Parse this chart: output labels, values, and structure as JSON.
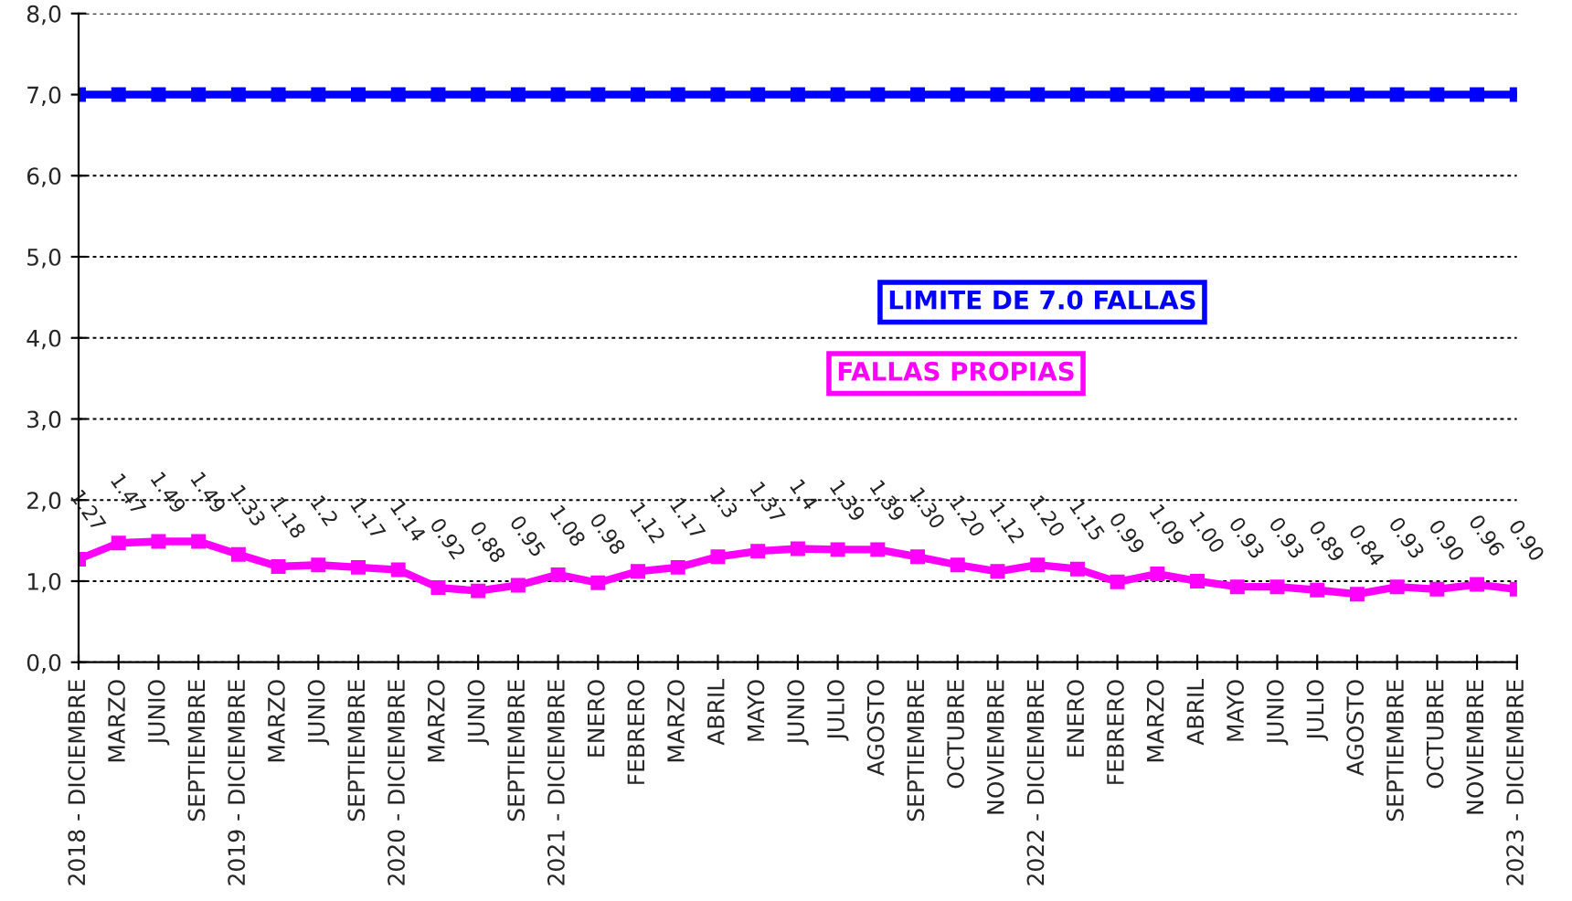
{
  "chart_data": {
    "type": "line",
    "categories": [
      "2018 - DICIEMBRE",
      "MARZO",
      "JUNIO",
      "SEPTIEMBRE",
      "2019 - DICIEMBRE",
      "MARZO",
      "JUNIO",
      "SEPTIEMBRE",
      "2020 - DICIEMBRE",
      "MARZO",
      "JUNIO",
      "SEPTIEMBRE",
      "2021 - DICIEMBRE",
      "ENERO",
      "FEBRERO",
      "MARZO",
      "ABRIL",
      "MAYO",
      "JUNIO",
      "JULIO",
      "AGOSTO",
      "SEPTIEMBRE",
      "OCTUBRE",
      "NOVIEMBRE",
      "2022 - DICIEMBRE",
      "ENERO",
      "FEBRERO",
      "MARZO",
      "ABRIL",
      "MAYO",
      "JUNIO",
      "JULIO",
      "AGOSTO",
      "SEPTIEMBRE",
      "OCTUBRE",
      "NOVIEMBRE",
      "2023 - DICIEMBRE"
    ],
    "series": [
      {
        "name": "LIMITE DE 7.0 FALLAS",
        "color": "#0000ff",
        "values": [
          7.0,
          7.0,
          7.0,
          7.0,
          7.0,
          7.0,
          7.0,
          7.0,
          7.0,
          7.0,
          7.0,
          7.0,
          7.0,
          7.0,
          7.0,
          7.0,
          7.0,
          7.0,
          7.0,
          7.0,
          7.0,
          7.0,
          7.0,
          7.0,
          7.0,
          7.0,
          7.0,
          7.0,
          7.0,
          7.0,
          7.0,
          7.0,
          7.0,
          7.0,
          7.0,
          7.0,
          7.0
        ]
      },
      {
        "name": "FALLAS PROPIAS",
        "color": "#ff00ff",
        "values": [
          1.27,
          1.47,
          1.49,
          1.49,
          1.33,
          1.18,
          1.2,
          1.17,
          1.14,
          0.92,
          0.88,
          0.95,
          1.08,
          0.98,
          1.12,
          1.17,
          1.3,
          1.37,
          1.4,
          1.39,
          1.39,
          1.3,
          1.2,
          1.12,
          1.2,
          1.15,
          0.99,
          1.09,
          1.0,
          0.93,
          0.93,
          0.89,
          0.84,
          0.93,
          0.9,
          0.96,
          0.9
        ],
        "value_labels": [
          "1.27",
          "1.47",
          "1.49",
          "1.49",
          "1.33",
          "1.18",
          "1.2",
          "1.17",
          "1.14",
          "0.92",
          "0.88",
          "0.95",
          "1.08",
          "0.98",
          "1.12",
          "1.17",
          "1.3",
          "1.37",
          "1.4",
          "1.39",
          "1.39",
          "1.30",
          "1.20",
          "1.12",
          "1.20",
          "1.15",
          "0.99",
          "1.09",
          "1.00",
          "0.93",
          "0.93",
          "0.89",
          "0.84",
          "0.93",
          "0.90",
          "0.96",
          "0.90"
        ]
      }
    ],
    "ylim": [
      0,
      8
    ],
    "yticks": [
      {
        "value": 0,
        "label": "0,0"
      },
      {
        "value": 1,
        "label": "1,0"
      },
      {
        "value": 2,
        "label": "2,0"
      },
      {
        "value": 3,
        "label": "3,0"
      },
      {
        "value": 4,
        "label": "4,0"
      },
      {
        "value": 5,
        "label": "5,0"
      },
      {
        "value": 6,
        "label": "6,0"
      },
      {
        "value": 7,
        "label": "7,0"
      },
      {
        "value": 8,
        "label": "8,0"
      }
    ],
    "grid": "y",
    "legend": false,
    "marker": "square",
    "line_style": "solid"
  }
}
